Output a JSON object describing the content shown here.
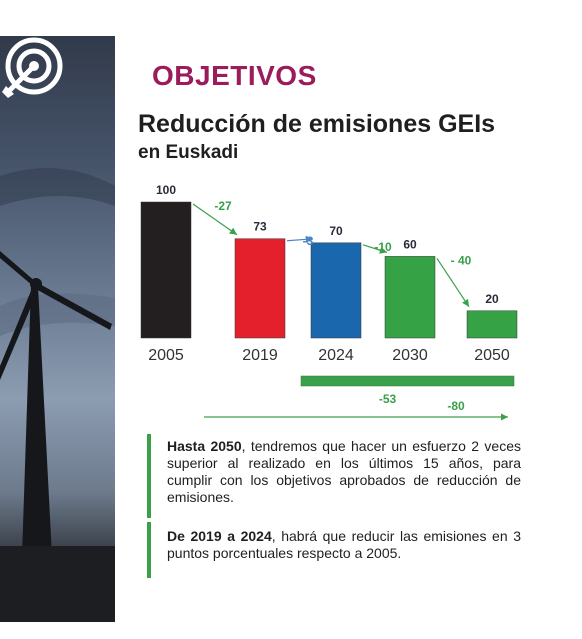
{
  "heading": "OBJETIVOS",
  "title": "Reducción de emisiones GEIs",
  "subtitle": "en Euskadi",
  "colors": {
    "heading": "#9b1c5b",
    "accent_green": "#3aa04a",
    "blue_arrow": "#4a86c5"
  },
  "icon": "target-icon",
  "chart_data": {
    "type": "bar",
    "categories": [
      "2005",
      "2019",
      "2024",
      "2030",
      "2050"
    ],
    "values": [
      100,
      73,
      70,
      60,
      20
    ],
    "value_labels": [
      "100",
      "73",
      "70",
      "60",
      "20"
    ],
    "bar_colors": [
      "#231f20",
      "#e3202c",
      "#1b67ad",
      "#35a345",
      "#35a345"
    ],
    "changes": [
      {
        "label": "-27",
        "color": "#3aa04a"
      },
      {
        "label": "-3",
        "color": "#4a86c5"
      },
      {
        "label": "-10",
        "color": "#3aa04a"
      },
      {
        "label": "- 40",
        "color": "#3aa04a"
      }
    ],
    "summary": {
      "bracket_label": "-53",
      "arrow_label": "-80"
    },
    "ylim": [
      0,
      100
    ],
    "title": "",
    "xlabel": "",
    "ylabel": ""
  },
  "notes": [
    {
      "bold": "Hasta 2050",
      "text": ", tendremos que hacer un esfuerzo 2 veces superior al realizado en los últimos 15 años, para cumplir con los objetivos aprobados de reducción de emisiones."
    },
    {
      "bold": "De 2019 a 2024",
      "text": ", habrá que reducir las emisiones en 3 puntos porcentuales respecto a 2005."
    }
  ]
}
